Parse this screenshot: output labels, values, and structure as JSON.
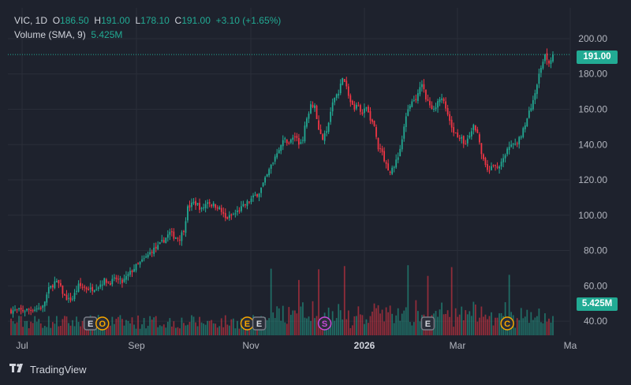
{
  "header": {
    "symbol": "VIC, 1D",
    "o_label": "O",
    "o_value": "186.50",
    "h_label": "H",
    "h_value": "191.00",
    "l_label": "L",
    "l_value": "178.10",
    "c_label": "C",
    "c_value": "191.00",
    "change": "+3.10 (+1.65%)",
    "volume_label": "Volume (SMA, 9)",
    "volume_value": "5.425M"
  },
  "price_tag": "191.00",
  "volume_tag": "5.425M",
  "footer": {
    "brand": "TradingView"
  },
  "colors": {
    "up": "#22ab94",
    "down": "#f23645",
    "bg": "#1e222d",
    "text": "#b2b5be",
    "grid": "#2a2e39"
  },
  "chart_data": {
    "type": "candlestick",
    "x_ticks": [
      "Jul",
      "Sep",
      "Nov",
      "2026",
      "Mar",
      "Ma"
    ],
    "y_ticks": [
      "200.00",
      "180.00",
      "160.00",
      "140.00",
      "120.00",
      "100.00",
      "80.00",
      "60.00",
      "40.00"
    ],
    "ylim": [
      32,
      204
    ],
    "last_price": 191.0,
    "close_path": [
      [
        0,
        46
      ],
      [
        6,
        46
      ],
      [
        12,
        47
      ],
      [
        16,
        48
      ],
      [
        19,
        58
      ],
      [
        22,
        62
      ],
      [
        24,
        61
      ],
      [
        27,
        54
      ],
      [
        29,
        52
      ],
      [
        31,
        53
      ],
      [
        34,
        60
      ],
      [
        37,
        59
      ],
      [
        40,
        58
      ],
      [
        44,
        60
      ],
      [
        47,
        63
      ],
      [
        50,
        62
      ],
      [
        53,
        64
      ],
      [
        56,
        62
      ],
      [
        59,
        66
      ],
      [
        62,
        70
      ],
      [
        65,
        73
      ],
      [
        68,
        76
      ],
      [
        71,
        80
      ],
      [
        74,
        82
      ],
      [
        77,
        86
      ],
      [
        80,
        90
      ],
      [
        82,
        88
      ],
      [
        85,
        87
      ],
      [
        87,
        92
      ],
      [
        89,
        104
      ],
      [
        92,
        107
      ],
      [
        94,
        106
      ],
      [
        96,
        103
      ],
      [
        99,
        108
      ],
      [
        101,
        106
      ],
      [
        104,
        105
      ],
      [
        106,
        102
      ],
      [
        108,
        98
      ],
      [
        110,
        99
      ],
      [
        113,
        101
      ],
      [
        116,
        104
      ],
      [
        119,
        107
      ],
      [
        122,
        110
      ],
      [
        125,
        113
      ],
      [
        128,
        120
      ],
      [
        131,
        128
      ],
      [
        134,
        136
      ],
      [
        136,
        140
      ],
      [
        138,
        143
      ],
      [
        140,
        141
      ],
      [
        143,
        145
      ],
      [
        145,
        140
      ],
      [
        147,
        144
      ],
      [
        149,
        155
      ],
      [
        151,
        163
      ],
      [
        153,
        162
      ],
      [
        155,
        148
      ],
      [
        157,
        143
      ],
      [
        159,
        147
      ],
      [
        161,
        158
      ],
      [
        163,
        167
      ],
      [
        165,
        170
      ],
      [
        167,
        178
      ],
      [
        169,
        172
      ],
      [
        171,
        164
      ],
      [
        173,
        160
      ],
      [
        175,
        163
      ],
      [
        177,
        157
      ],
      [
        179,
        161
      ],
      [
        181,
        155
      ],
      [
        183,
        150
      ],
      [
        185,
        138
      ],
      [
        187,
        135
      ],
      [
        189,
        128
      ],
      [
        191,
        125
      ],
      [
        193,
        128
      ],
      [
        195,
        133
      ],
      [
        197,
        143
      ],
      [
        199,
        155
      ],
      [
        201,
        163
      ],
      [
        203,
        165
      ],
      [
        205,
        168
      ],
      [
        207,
        175
      ],
      [
        209,
        166
      ],
      [
        211,
        162
      ],
      [
        213,
        159
      ],
      [
        215,
        166
      ],
      [
        217,
        167
      ],
      [
        219,
        160
      ],
      [
        221,
        152
      ],
      [
        223,
        148
      ],
      [
        225,
        145
      ],
      [
        227,
        143
      ],
      [
        229,
        140
      ],
      [
        231,
        145
      ],
      [
        233,
        150
      ],
      [
        235,
        148
      ],
      [
        237,
        134
      ],
      [
        239,
        127
      ],
      [
        241,
        126
      ],
      [
        243,
        128
      ],
      [
        245,
        127
      ],
      [
        247,
        130
      ],
      [
        249,
        133
      ],
      [
        251,
        140
      ],
      [
        253,
        139
      ],
      [
        255,
        141
      ],
      [
        257,
        146
      ],
      [
        259,
        152
      ],
      [
        261,
        158
      ],
      [
        263,
        165
      ],
      [
        265,
        175
      ],
      [
        267,
        183
      ],
      [
        269,
        192
      ],
      [
        271,
        186
      ],
      [
        273,
        191
      ]
    ],
    "markers": [
      {
        "label": "E",
        "x": 40,
        "kind": "gray"
      },
      {
        "label": "O",
        "x": 46,
        "kind": "orange"
      },
      {
        "label": "E",
        "x": 119,
        "kind": "orange"
      },
      {
        "label": "E",
        "x": 125,
        "kind": "gray"
      },
      {
        "label": "S",
        "x": 158,
        "kind": "purple"
      },
      {
        "label": "E",
        "x": 210,
        "kind": "gray"
      },
      {
        "label": "C",
        "x": 250,
        "kind": "orange"
      }
    ]
  }
}
